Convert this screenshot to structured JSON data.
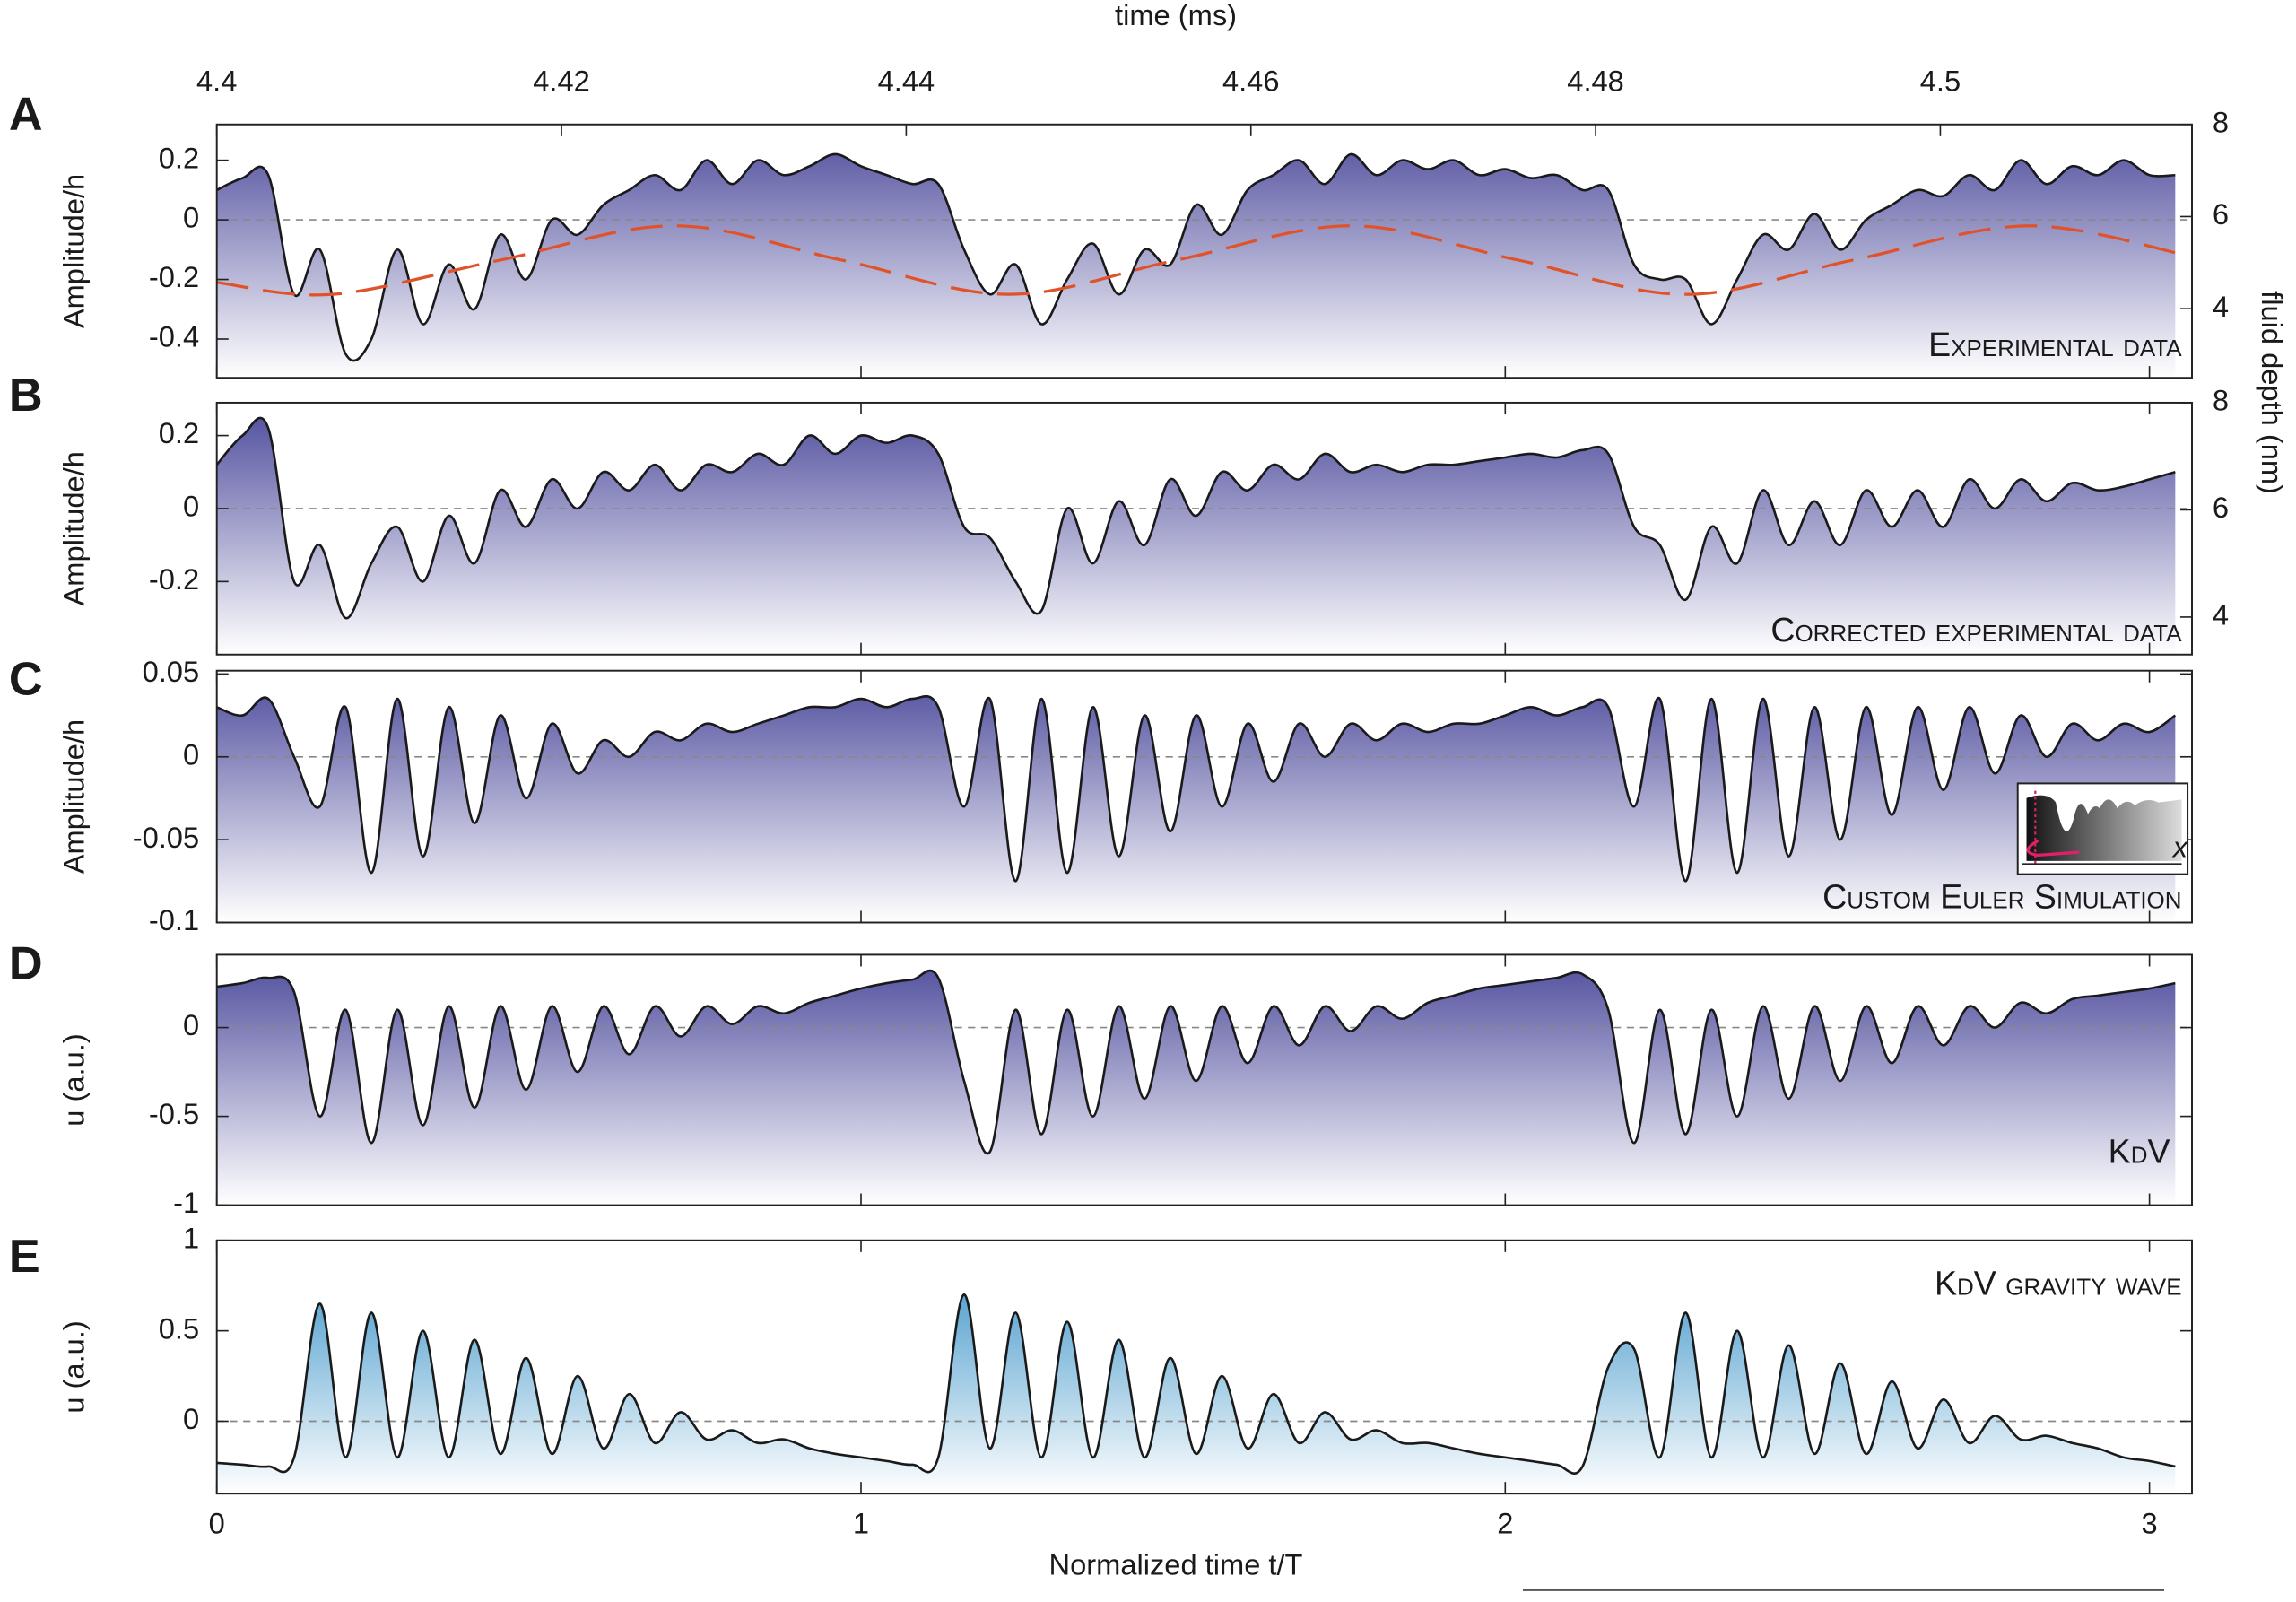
{
  "chart_data": [
    {
      "type": "line",
      "label": "A",
      "ylabel": "Amplitude/h",
      "x2label": "time (ms)",
      "y2label": "fluid depth (nm)",
      "annotation": "Experimental data",
      "xlim": [
        0,
        3.066
      ],
      "xticks": [
        0,
        1,
        2,
        3
      ],
      "x2lim": [
        4.4,
        4.5146
      ],
      "x2ticks": [
        4.4,
        4.42,
        4.44,
        4.46,
        4.48,
        4.5
      ],
      "ylim": [
        -0.53,
        0.32
      ],
      "yticks": [
        -0.4,
        -0.2,
        0,
        0.2
      ],
      "y2lim": [
        2.5,
        8
      ],
      "y2ticks": [
        4,
        6,
        8
      ],
      "zero_line": true,
      "x": [
        0,
        0.04,
        0.08,
        0.12,
        0.16,
        0.2,
        0.24,
        0.28,
        0.32,
        0.36,
        0.4,
        0.44,
        0.48,
        0.52,
        0.56,
        0.6,
        0.64,
        0.68,
        0.72,
        0.76,
        0.8,
        0.84,
        0.88,
        0.92,
        0.96,
        1,
        1.04,
        1.08,
        1.12,
        1.16,
        1.2,
        1.24,
        1.28,
        1.32,
        1.36,
        1.4,
        1.44,
        1.48,
        1.52,
        1.56,
        1.6,
        1.64,
        1.68,
        1.72,
        1.76,
        1.8,
        1.84,
        1.88,
        1.92,
        1.96,
        2,
        2.04,
        2.08,
        2.12,
        2.16,
        2.2,
        2.24,
        2.28,
        2.32,
        2.36,
        2.4,
        2.44,
        2.48,
        2.52,
        2.56,
        2.6,
        2.64,
        2.68,
        2.72,
        2.76,
        2.8,
        2.84,
        2.88,
        2.92,
        2.96,
        3,
        3.04
      ],
      "series": [
        {
          "color": "#1a1a1a",
          "fill": "#4c4a9b",
          "values": [
            0.1,
            0.14,
            0.15,
            -0.25,
            -0.1,
            -0.45,
            -0.4,
            -0.1,
            -0.35,
            -0.15,
            -0.3,
            -0.05,
            -0.2,
            0,
            -0.05,
            0.05,
            0.1,
            0.15,
            0.1,
            0.2,
            0.12,
            0.2,
            0.15,
            0.18,
            0.22,
            0.18,
            0.15,
            0.12,
            0.12,
            -0.1,
            -0.25,
            -0.15,
            -0.35,
            -0.2,
            -0.08,
            -0.25,
            -0.1,
            -0.15,
            0.05,
            -0.05,
            0.1,
            0.15,
            0.2,
            0.12,
            0.22,
            0.15,
            0.2,
            0.17,
            0.2,
            0.15,
            0.17,
            0.14,
            0.15,
            0.1,
            0.1,
            -0.15,
            -0.2,
            -0.2,
            -0.35,
            -0.2,
            -0.05,
            -0.1,
            0.02,
            -0.1,
            0,
            0.05,
            0.1,
            0.08,
            0.15,
            0.1,
            0.2,
            0.12,
            0.18,
            0.15,
            0.2,
            0.15,
            0.15
          ]
        },
        {
          "color": "#e0532a",
          "dashed": true,
          "x": [
            0,
            0.18,
            0.44,
            0.71,
            0.97,
            1.23,
            1.49,
            1.76,
            2.02,
            2.28,
            2.54,
            2.81,
            3.06
          ],
          "values": [
            -0.21,
            -0.25,
            -0.135,
            -0.02,
            -0.135,
            -0.25,
            -0.135,
            -0.02,
            -0.135,
            -0.25,
            -0.135,
            -0.02,
            -0.12
          ]
        }
      ]
    },
    {
      "type": "line",
      "label": "B",
      "ylabel": "Amplitude/h",
      "annotation": "Corrected experimental data",
      "xlim": [
        0,
        3.066
      ],
      "xticks": [
        0,
        1,
        2,
        3
      ],
      "ylim": [
        -0.4,
        0.29
      ],
      "yticks": [
        -0.2,
        0,
        0.2
      ],
      "y2lim": [
        3.3,
        8
      ],
      "y2ticks": [
        4,
        6,
        8
      ],
      "zero_line": true,
      "x": [
        0,
        0.04,
        0.08,
        0.12,
        0.16,
        0.2,
        0.24,
        0.28,
        0.32,
        0.36,
        0.4,
        0.44,
        0.48,
        0.52,
        0.56,
        0.6,
        0.64,
        0.68,
        0.72,
        0.76,
        0.8,
        0.84,
        0.88,
        0.92,
        0.96,
        1,
        1.04,
        1.08,
        1.12,
        1.16,
        1.2,
        1.24,
        1.28,
        1.32,
        1.36,
        1.4,
        1.44,
        1.48,
        1.52,
        1.56,
        1.6,
        1.64,
        1.68,
        1.72,
        1.76,
        1.8,
        1.84,
        1.88,
        1.92,
        1.96,
        2,
        2.04,
        2.08,
        2.12,
        2.16,
        2.2,
        2.24,
        2.28,
        2.32,
        2.36,
        2.4,
        2.44,
        2.48,
        2.52,
        2.56,
        2.6,
        2.64,
        2.68,
        2.72,
        2.76,
        2.8,
        2.84,
        2.88,
        2.92,
        2.96,
        3,
        3.04
      ],
      "series": [
        {
          "color": "#1a1a1a",
          "fill": "#4c4a9b",
          "values": [
            0.12,
            0.2,
            0.22,
            -0.2,
            -0.1,
            -0.3,
            -0.15,
            -0.05,
            -0.2,
            -0.02,
            -0.15,
            0.05,
            -0.05,
            0.08,
            0,
            0.1,
            0.05,
            0.12,
            0.05,
            0.12,
            0.1,
            0.15,
            0.12,
            0.2,
            0.15,
            0.2,
            0.18,
            0.2,
            0.15,
            -0.05,
            -0.08,
            -0.2,
            -0.28,
            0,
            -0.15,
            0.02,
            -0.1,
            0.08,
            -0.02,
            0.1,
            0.05,
            0.12,
            0.08,
            0.15,
            0.1,
            0.12,
            0.1,
            0.12,
            0.12,
            0.13,
            0.14,
            0.15,
            0.14,
            0.16,
            0.15,
            -0.05,
            -0.1,
            -0.25,
            -0.05,
            -0.15,
            0.05,
            -0.1,
            0.02,
            -0.1,
            0.05,
            -0.05,
            0.05,
            -0.05,
            0.08,
            0,
            0.08,
            0.02,
            0.07,
            0.05,
            0.06,
            0.08,
            0.1
          ]
        }
      ]
    },
    {
      "type": "line",
      "label": "C",
      "ylabel": "Amplitude/h",
      "annotation": "Custom Euler Simulation",
      "inset_label": "x",
      "xlim": [
        0,
        3.066
      ],
      "xticks": [
        0,
        1,
        2,
        3
      ],
      "ylim": [
        -0.1,
        0.052
      ],
      "yticks": [
        -0.1,
        -0.05,
        0,
        0.05
      ],
      "zero_line": true,
      "x": [
        0,
        0.04,
        0.08,
        0.12,
        0.16,
        0.2,
        0.24,
        0.28,
        0.32,
        0.36,
        0.4,
        0.44,
        0.48,
        0.52,
        0.56,
        0.6,
        0.64,
        0.68,
        0.72,
        0.76,
        0.8,
        0.84,
        0.88,
        0.92,
        0.96,
        1,
        1.04,
        1.08,
        1.12,
        1.16,
        1.2,
        1.24,
        1.28,
        1.32,
        1.36,
        1.4,
        1.44,
        1.48,
        1.52,
        1.56,
        1.6,
        1.64,
        1.68,
        1.72,
        1.76,
        1.8,
        1.84,
        1.88,
        1.92,
        1.96,
        2,
        2.04,
        2.08,
        2.12,
        2.16,
        2.2,
        2.24,
        2.28,
        2.32,
        2.36,
        2.4,
        2.44,
        2.48,
        2.52,
        2.56,
        2.6,
        2.64,
        2.68,
        2.72,
        2.76,
        2.8,
        2.84,
        2.88,
        2.92,
        2.96,
        3,
        3.04
      ],
      "series": [
        {
          "color": "#1a1a1a",
          "fill": "#4c4a9b",
          "values": [
            0.03,
            0.025,
            0.035,
            0,
            -0.03,
            0.03,
            -0.07,
            0.035,
            -0.06,
            0.03,
            -0.04,
            0.025,
            -0.025,
            0.02,
            -0.01,
            0.01,
            0,
            0.015,
            0.01,
            0.02,
            0.015,
            0.02,
            0.025,
            0.03,
            0.03,
            0.035,
            0.03,
            0.035,
            0.03,
            -0.03,
            0.035,
            -0.075,
            0.035,
            -0.07,
            0.03,
            -0.06,
            0.025,
            -0.045,
            0.025,
            -0.03,
            0.02,
            -0.015,
            0.02,
            0,
            0.02,
            0.01,
            0.02,
            0.015,
            0.02,
            0.02,
            0.025,
            0.03,
            0.025,
            0.03,
            0.03,
            -0.03,
            0.035,
            -0.075,
            0.035,
            -0.07,
            0.035,
            -0.06,
            0.03,
            -0.05,
            0.03,
            -0.035,
            0.03,
            -0.02,
            0.03,
            -0.01,
            0.025,
            0,
            0.02,
            0.01,
            0.02,
            0.015,
            0.025
          ]
        }
      ]
    },
    {
      "type": "line",
      "label": "D",
      "ylabel": "u (a.u.)",
      "annotation": "KdV",
      "xlim": [
        0,
        3.066
      ],
      "xticks": [
        0,
        1,
        2,
        3
      ],
      "ylim": [
        -1,
        0.41
      ],
      "yticks": [
        -1,
        -0.5,
        0
      ],
      "zero_line": true,
      "x": [
        0,
        0.04,
        0.08,
        0.12,
        0.16,
        0.2,
        0.24,
        0.28,
        0.32,
        0.36,
        0.4,
        0.44,
        0.48,
        0.52,
        0.56,
        0.6,
        0.64,
        0.68,
        0.72,
        0.76,
        0.8,
        0.84,
        0.88,
        0.92,
        0.96,
        1,
        1.04,
        1.08,
        1.12,
        1.16,
        1.2,
        1.24,
        1.28,
        1.32,
        1.36,
        1.4,
        1.44,
        1.48,
        1.52,
        1.56,
        1.6,
        1.64,
        1.68,
        1.72,
        1.76,
        1.8,
        1.84,
        1.88,
        1.92,
        1.96,
        2,
        2.04,
        2.08,
        2.12,
        2.16,
        2.2,
        2.24,
        2.28,
        2.32,
        2.36,
        2.4,
        2.44,
        2.48,
        2.52,
        2.56,
        2.6,
        2.64,
        2.68,
        2.72,
        2.76,
        2.8,
        2.84,
        2.88,
        2.92,
        2.96,
        3,
        3.04
      ],
      "series": [
        {
          "color": "#1a1a1a",
          "fill": "#4c4a9b",
          "values": [
            0.23,
            0.25,
            0.28,
            0.2,
            -0.5,
            0.1,
            -0.65,
            0.1,
            -0.55,
            0.12,
            -0.45,
            0.12,
            -0.35,
            0.12,
            -0.25,
            0.12,
            -0.15,
            0.12,
            -0.05,
            0.12,
            0.02,
            0.12,
            0.08,
            0.14,
            0.18,
            0.22,
            0.25,
            0.27,
            0.28,
            -0.3,
            -0.7,
            0.1,
            -0.6,
            0.1,
            -0.5,
            0.12,
            -0.4,
            0.12,
            -0.3,
            0.12,
            -0.2,
            0.12,
            -0.1,
            0.12,
            -0.02,
            0.12,
            0.05,
            0.14,
            0.18,
            0.22,
            0.24,
            0.26,
            0.28,
            0.3,
            0.1,
            -0.65,
            0.1,
            -0.6,
            0.1,
            -0.5,
            0.12,
            -0.4,
            0.12,
            -0.3,
            0.12,
            -0.2,
            0.12,
            -0.1,
            0.12,
            0,
            0.14,
            0.08,
            0.16,
            0.18,
            0.2,
            0.22,
            0.25
          ]
        }
      ]
    },
    {
      "type": "line",
      "label": "E",
      "ylabel": "u (a.u.)",
      "xlabel": "Normalized time t/T",
      "annotation": "KdV gravity wave",
      "xlim": [
        0,
        3.066
      ],
      "xticks": [
        0,
        1,
        2,
        3
      ],
      "ylim": [
        -0.4,
        1
      ],
      "yticks": [
        0,
        0.5,
        1
      ],
      "zero_line": true,
      "x": [
        0,
        0.04,
        0.08,
        0.12,
        0.16,
        0.2,
        0.24,
        0.28,
        0.32,
        0.36,
        0.4,
        0.44,
        0.48,
        0.52,
        0.56,
        0.6,
        0.64,
        0.68,
        0.72,
        0.76,
        0.8,
        0.84,
        0.88,
        0.92,
        0.96,
        1,
        1.04,
        1.08,
        1.12,
        1.16,
        1.2,
        1.24,
        1.28,
        1.32,
        1.36,
        1.4,
        1.44,
        1.48,
        1.52,
        1.56,
        1.6,
        1.64,
        1.68,
        1.72,
        1.76,
        1.8,
        1.84,
        1.88,
        1.92,
        1.96,
        2,
        2.04,
        2.08,
        2.12,
        2.16,
        2.2,
        2.24,
        2.28,
        2.32,
        2.36,
        2.4,
        2.44,
        2.48,
        2.52,
        2.56,
        2.6,
        2.64,
        2.68,
        2.72,
        2.76,
        2.8,
        2.84,
        2.88,
        2.92,
        2.96,
        3,
        3.04
      ],
      "series": [
        {
          "color": "#1a1a1a",
          "fill": "#2f8cc4",
          "values": [
            -0.23,
            -0.24,
            -0.25,
            -0.2,
            0.65,
            -0.2,
            0.6,
            -0.2,
            0.5,
            -0.2,
            0.45,
            -0.18,
            0.35,
            -0.18,
            0.25,
            -0.15,
            0.15,
            -0.12,
            0.05,
            -0.1,
            -0.05,
            -0.12,
            -0.1,
            -0.15,
            -0.18,
            -0.2,
            -0.22,
            -0.24,
            -0.2,
            0.7,
            -0.15,
            0.6,
            -0.2,
            0.55,
            -0.2,
            0.45,
            -0.2,
            0.35,
            -0.18,
            0.25,
            -0.15,
            0.15,
            -0.12,
            0.05,
            -0.1,
            -0.05,
            -0.12,
            -0.12,
            -0.15,
            -0.18,
            -0.2,
            -0.22,
            -0.24,
            -0.25,
            0.3,
            0.4,
            -0.2,
            0.6,
            -0.2,
            0.5,
            -0.2,
            0.42,
            -0.18,
            0.32,
            -0.18,
            0.22,
            -0.15,
            0.12,
            -0.12,
            0.03,
            -0.1,
            -0.08,
            -0.12,
            -0.15,
            -0.2,
            -0.22,
            -0.25
          ]
        }
      ]
    }
  ]
}
